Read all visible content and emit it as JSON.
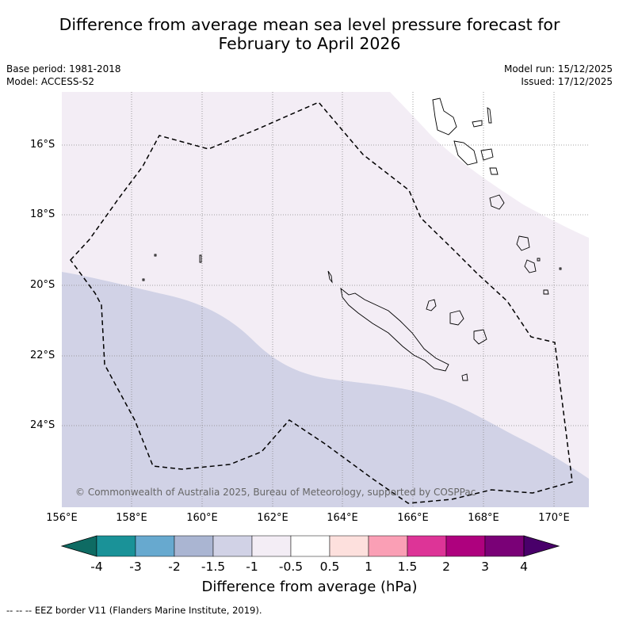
{
  "title": {
    "line1": "Difference from average mean sea level pressure forecast for",
    "line2": "February to April 2026"
  },
  "metadata": {
    "base_period": "Base period: 1981-2018",
    "model": "Model: ACCESS-S2",
    "model_run": "Model run: 15/12/2025",
    "issued": "Issued: 17/12/2025"
  },
  "map": {
    "lat_labels": [
      "16°S",
      "18°S",
      "20°S",
      "22°S",
      "24°S"
    ],
    "lon_labels": [
      "156°E",
      "158°E",
      "160°E",
      "162°E",
      "164°E",
      "166°E",
      "168°E",
      "170°E"
    ],
    "copyright": "© Commonwealth of Australia 2025, Bureau of Meteorology, supported by COSPPac",
    "fill_colors": {
      "slightly_above": "#f3edf5",
      "below": "#d1d2e6"
    }
  },
  "colorbar": {
    "title": "Difference from average (hPa)",
    "ticks": [
      "-4",
      "-3",
      "-2",
      "-1.5",
      "-1",
      "-0.5",
      "0.5",
      "1",
      "1.5",
      "2",
      "3",
      "4"
    ],
    "colors": [
      "#0e6b63",
      "#1a9298",
      "#67a9cf",
      "#aab5d2",
      "#d1d2e6",
      "#f3edf5",
      "#ffffff",
      "#fde0dd",
      "#fa9fb5",
      "#dd3497",
      "#ae017e",
      "#7a0177",
      "#49006a"
    ]
  },
  "footnote": "--  --  -- EEZ border V11 (Flanders Marine Institute, 2019)."
}
